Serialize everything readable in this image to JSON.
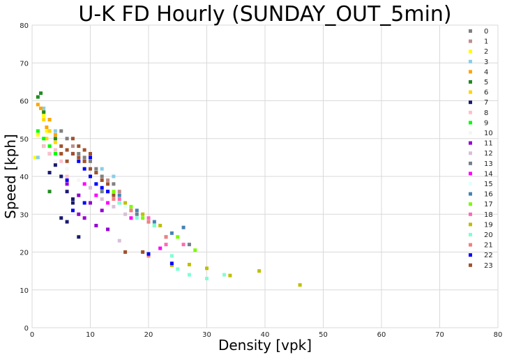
{
  "chart_data": {
    "type": "scatter",
    "title": "U-K FD Hourly (SUNDAY_OUT_5min)",
    "xlabel": "Density [vpk]",
    "ylabel": "Speed [kph]",
    "xlim": [
      0,
      80
    ],
    "ylim": [
      0,
      80
    ],
    "xticks": [
      "0",
      "10",
      "20",
      "30",
      "40",
      "50",
      "60",
      "70",
      "80"
    ],
    "yticks": [
      "0",
      "10",
      "20",
      "30",
      "40",
      "50",
      "60",
      "70",
      "80"
    ],
    "grid": true,
    "legend_position": "top-right",
    "series": [
      {
        "name": "0",
        "color": "#808080",
        "points": [
          [
            6,
            50
          ],
          [
            8,
            46
          ],
          [
            10,
            44
          ],
          [
            12,
            40
          ],
          [
            14,
            38
          ],
          [
            5,
            52
          ],
          [
            9,
            45
          ],
          [
            11,
            42
          ]
        ]
      },
      {
        "name": "1",
        "color": "#bc8f8f",
        "points": [
          [
            7,
            48
          ],
          [
            9,
            44
          ],
          [
            13,
            39
          ],
          [
            15,
            36
          ],
          [
            11,
            41
          ]
        ]
      },
      {
        "name": "2",
        "color": "#ffff00",
        "points": [
          [
            1,
            51
          ],
          [
            2,
            56
          ],
          [
            3,
            48
          ],
          [
            0.5,
            45
          ],
          [
            4,
            46
          ],
          [
            2.5,
            52
          ]
        ]
      },
      {
        "name": "3",
        "color": "#87ceeb",
        "points": [
          [
            2,
            58
          ],
          [
            3,
            55
          ],
          [
            4,
            52
          ],
          [
            12,
            42
          ],
          [
            14,
            40
          ],
          [
            1,
            45
          ]
        ]
      },
      {
        "name": "4",
        "color": "#ffa500",
        "points": [
          [
            1,
            59
          ],
          [
            2,
            57
          ],
          [
            3,
            55
          ],
          [
            1.5,
            58
          ],
          [
            2.5,
            53
          ],
          [
            4,
            51
          ]
        ]
      },
      {
        "name": "5",
        "color": "#228b22",
        "points": [
          [
            1,
            61
          ],
          [
            2,
            57
          ],
          [
            3,
            52
          ],
          [
            1.5,
            62
          ],
          [
            4,
            50
          ],
          [
            3,
            36
          ],
          [
            2,
            48
          ]
        ]
      },
      {
        "name": "6",
        "color": "#ffd700",
        "points": [
          [
            2,
            55
          ],
          [
            3,
            52
          ],
          [
            4,
            49
          ],
          [
            5,
            46
          ],
          [
            2.5,
            50
          ]
        ]
      },
      {
        "name": "7",
        "color": "#191970",
        "points": [
          [
            3,
            46
          ],
          [
            4,
            43
          ],
          [
            5,
            40
          ],
          [
            6,
            36
          ],
          [
            7,
            33
          ],
          [
            5,
            29
          ],
          [
            6,
            28
          ],
          [
            7,
            34
          ],
          [
            3,
            41
          ],
          [
            8,
            24
          ]
        ]
      },
      {
        "name": "8",
        "color": "#ffc0cb",
        "points": [
          [
            2,
            48
          ],
          [
            3,
            46
          ],
          [
            5,
            44
          ],
          [
            6,
            40
          ],
          [
            4,
            47
          ]
        ]
      },
      {
        "name": "9",
        "color": "#00ff00",
        "points": [
          [
            1,
            52
          ],
          [
            2,
            50
          ],
          [
            3,
            48
          ],
          [
            4,
            46
          ]
        ]
      },
      {
        "name": "10",
        "color": "#f5f5f5",
        "points": [
          [
            4,
            44
          ],
          [
            6,
            42
          ],
          [
            8,
            39
          ]
        ]
      },
      {
        "name": "11",
        "color": "#9400d3",
        "points": [
          [
            6,
            38
          ],
          [
            8,
            35
          ],
          [
            10,
            33
          ],
          [
            12,
            31
          ],
          [
            8,
            30
          ],
          [
            9,
            29
          ],
          [
            11,
            27
          ],
          [
            13,
            26
          ]
        ]
      },
      {
        "name": "12",
        "color": "#d8bfd8",
        "points": [
          [
            10,
            37
          ],
          [
            12,
            34
          ],
          [
            14,
            32
          ],
          [
            16,
            30
          ],
          [
            15,
            23
          ]
        ]
      },
      {
        "name": "13",
        "color": "#708090",
        "points": [
          [
            12,
            36
          ],
          [
            15,
            33
          ],
          [
            18,
            30
          ],
          [
            20,
            28
          ],
          [
            23,
            24
          ],
          [
            27,
            22
          ]
        ]
      },
      {
        "name": "14",
        "color": "#ff00ff",
        "points": [
          [
            9,
            38
          ],
          [
            11,
            35
          ],
          [
            13,
            33
          ],
          [
            17,
            29
          ],
          [
            22,
            21
          ]
        ]
      },
      {
        "name": "15",
        "color": "#e0ffff",
        "points": [
          [
            14,
            34
          ],
          [
            16,
            32
          ],
          [
            19,
            29
          ]
        ]
      },
      {
        "name": "16",
        "color": "#4682b4",
        "points": [
          [
            15,
            35
          ],
          [
            18,
            31
          ],
          [
            21,
            28
          ],
          [
            24,
            25
          ],
          [
            26,
            26.5
          ]
        ]
      },
      {
        "name": "17",
        "color": "#7cfc00",
        "points": [
          [
            14,
            36
          ],
          [
            17,
            32
          ],
          [
            19,
            29
          ],
          [
            21,
            27
          ],
          [
            25,
            24
          ],
          [
            28,
            20.5
          ]
        ]
      },
      {
        "name": "18",
        "color": "#ff69b4",
        "points": [
          [
            13,
            36
          ],
          [
            15,
            34
          ],
          [
            17,
            31
          ],
          [
            20,
            29
          ],
          [
            23,
            22
          ],
          [
            26,
            22
          ]
        ]
      },
      {
        "name": "19",
        "color": "#bfbf00",
        "points": [
          [
            16,
            33
          ],
          [
            19,
            30
          ],
          [
            22,
            27
          ],
          [
            24,
            16.5
          ],
          [
            30,
            15.7
          ],
          [
            34,
            13.8
          ],
          [
            39,
            15
          ],
          [
            46,
            11.3
          ],
          [
            27,
            16.7
          ]
        ]
      },
      {
        "name": "20",
        "color": "#7fffd4",
        "points": [
          [
            15,
            33
          ],
          [
            18,
            29
          ],
          [
            21,
            27
          ],
          [
            24,
            19
          ],
          [
            27,
            14
          ],
          [
            30,
            13
          ],
          [
            33,
            14
          ],
          [
            25,
            15.5
          ]
        ]
      },
      {
        "name": "21",
        "color": "#f08080",
        "points": [
          [
            14,
            34
          ],
          [
            17,
            31
          ],
          [
            20,
            28
          ],
          [
            23,
            24
          ],
          [
            20,
            19
          ]
        ]
      },
      {
        "name": "22",
        "color": "#0000ff",
        "points": [
          [
            7,
            46
          ],
          [
            8,
            44
          ],
          [
            9,
            42
          ],
          [
            10,
            40
          ],
          [
            11,
            38
          ],
          [
            12,
            37
          ],
          [
            13,
            36
          ],
          [
            9,
            33
          ],
          [
            24,
            17
          ],
          [
            20,
            19.5
          ],
          [
            7,
            31
          ],
          [
            6,
            39
          ],
          [
            10,
            45
          ]
        ]
      },
      {
        "name": "23",
        "color": "#a0522d",
        "points": [
          [
            5,
            48
          ],
          [
            6,
            47
          ],
          [
            7,
            46
          ],
          [
            8,
            45
          ],
          [
            9,
            44
          ],
          [
            10,
            42
          ],
          [
            11,
            41
          ],
          [
            12,
            39
          ],
          [
            13,
            38
          ],
          [
            14,
            35
          ],
          [
            16,
            20
          ],
          [
            19,
            20
          ],
          [
            7,
            50
          ],
          [
            6,
            44
          ],
          [
            8,
            48
          ],
          [
            5,
            46
          ],
          [
            9,
            47
          ],
          [
            10,
            46
          ]
        ]
      }
    ]
  }
}
